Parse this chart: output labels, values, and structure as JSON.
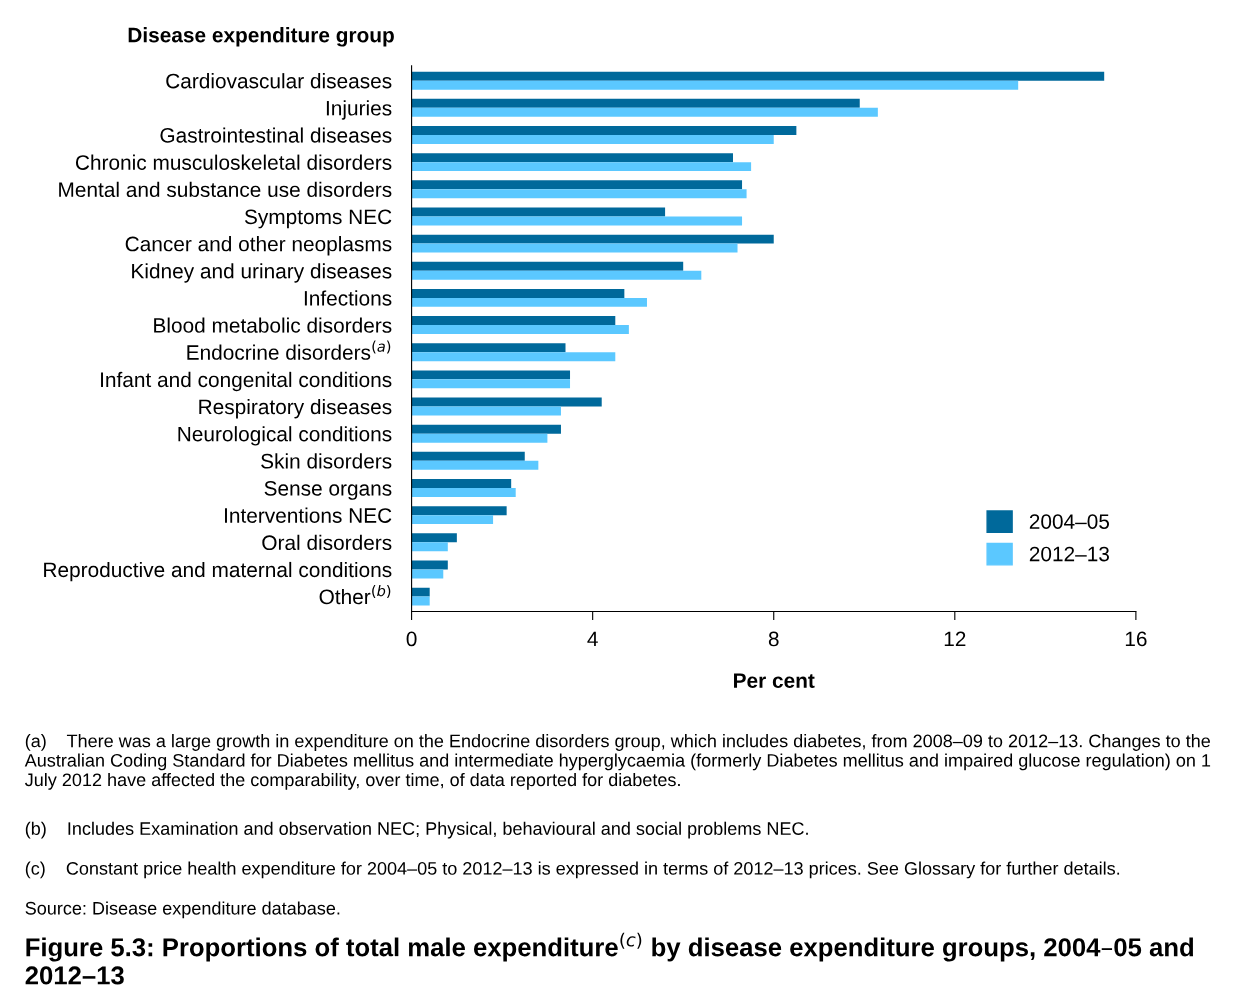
{
  "chart_data": {
    "type": "bar",
    "orientation": "horizontal",
    "title": "Figure 5.3: Proportions of total male expenditure$^{(c)}$ by disease expenditure groups, 2004–05 and 2012–13",
    "ylabel": "Disease expenditure group",
    "xlabel": "Per cent",
    "categories": [
      "Cardiovascular diseases",
      "Injuries",
      "Gastrointestinal diseases",
      "Chronic musculoskeletal disorders",
      "Mental and substance use disorders",
      "Symptoms NEC",
      "Cancer and other neoplasms",
      "Kidney and urinary diseases",
      "Infections",
      "Blood metabolic disorders",
      "Endocrine disorders$^{(a)}$",
      "Infant and congenital conditions",
      "Respiratory diseases",
      "Neurological conditions",
      "Skin disorders",
      "Sense organs",
      "Interventions NEC",
      "Oral disorders",
      "Reproductive and maternal conditions",
      "Other$^{(b)}$"
    ],
    "series": [
      {
        "name": "2004–05",
        "color": "#00699b",
        "values": [
          15.3,
          9.9,
          8.5,
          7.1,
          7.3,
          5.6,
          8.0,
          6.0,
          4.7,
          4.5,
          3.4,
          3.5,
          4.2,
          3.3,
          2.5,
          2.2,
          2.1,
          1.0,
          0.8,
          0.4
        ]
      },
      {
        "name": "2012–13",
        "color": "#5bc8ff",
        "values": [
          13.4,
          10.3,
          8.0,
          7.5,
          7.4,
          7.3,
          7.2,
          6.4,
          5.2,
          4.8,
          4.5,
          3.5,
          3.3,
          3.0,
          2.8,
          2.3,
          1.8,
          0.8,
          0.7,
          0.4
        ]
      }
    ],
    "xlim": [
      0,
      16
    ],
    "xticks": [
      0,
      4,
      8,
      12,
      16
    ],
    "grid": false,
    "legend": "bottom right",
    "annotations": [
      "(a)    There was a large growth in expenditure on the Endocrine disorders group, which includes diabetes, from 2008–09 to 2012–13. Changes to the Australian Coding Standard for Diabetes mellitus and intermediate hyperglycaemia (formerly Diabetes mellitus and impaired glucose regulation) on 1 July 2012 have affected the comparability, over time, of data reported for diabetes.",
      "(b)    Includes Examination and observation NEC; Physical, behavioural and social problems NEC.",
      "(c)    Constant price health expenditure for 2004–05 to 2012–13 is expressed in terms of 2012–13 prices. See Glossary for further details.",
      "Source: Disease expenditure database."
    ]
  }
}
